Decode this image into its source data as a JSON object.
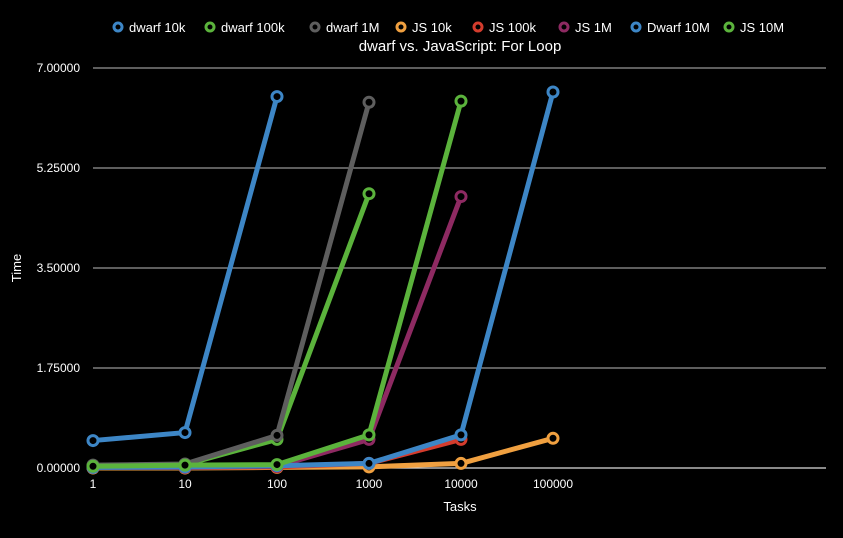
{
  "chart_data": {
    "type": "line",
    "title": "dwarf vs. JavaScript: For Loop",
    "xlabel": "Tasks",
    "ylabel": "Time",
    "x_ticks": [
      "1",
      "10",
      "100",
      "1000",
      "10000",
      "100000"
    ],
    "y_ticks": [
      "0.00000",
      "1.75000",
      "3.50000",
      "5.25000",
      "7.00000"
    ],
    "ylim": [
      0,
      7
    ],
    "legend_position": "top",
    "grid": true,
    "series": [
      {
        "name": "dwarf 10k",
        "color": "#3d86c6",
        "x": [
          1,
          10,
          100
        ],
        "y": [
          0.48,
          0.62,
          6.5
        ]
      },
      {
        "name": "dwarf 100k",
        "color": "#5bb33c",
        "x": [
          1,
          10,
          100,
          1000
        ],
        "y": [
          0.04,
          0.06,
          0.5,
          4.8
        ]
      },
      {
        "name": "dwarf 1M",
        "color": "#5e5e5e",
        "x": [
          1,
          10,
          100,
          1000
        ],
        "y": [
          0.05,
          0.07,
          0.57,
          6.4
        ]
      },
      {
        "name": "JS 10k",
        "color": "#f0a040",
        "x": [
          1,
          10,
          100,
          1000,
          10000,
          100000
        ],
        "y": [
          0.0,
          0.0,
          0.01,
          0.02,
          0.08,
          0.52
        ]
      },
      {
        "name": "JS 100k",
        "color": "#d43c2d",
        "x": [
          1,
          10,
          100,
          1000,
          10000
        ],
        "y": [
          0.01,
          0.01,
          0.02,
          0.08,
          0.5
        ]
      },
      {
        "name": "JS 1M",
        "color": "#8e2a62",
        "x": [
          1,
          10,
          100,
          1000,
          10000
        ],
        "y": [
          0.01,
          0.01,
          0.03,
          0.5,
          4.75
        ]
      },
      {
        "name": "Dwarf 10M",
        "color": "#3d86c6",
        "x": [
          1,
          10,
          100,
          1000,
          10000,
          100000
        ],
        "y": [
          0.01,
          0.02,
          0.04,
          0.08,
          0.58,
          6.58
        ]
      },
      {
        "name": "JS 10M",
        "color": "#5bb33c",
        "x": [
          1,
          10,
          100,
          1000,
          10000
        ],
        "y": [
          0.03,
          0.05,
          0.06,
          0.58,
          6.42
        ]
      }
    ]
  }
}
